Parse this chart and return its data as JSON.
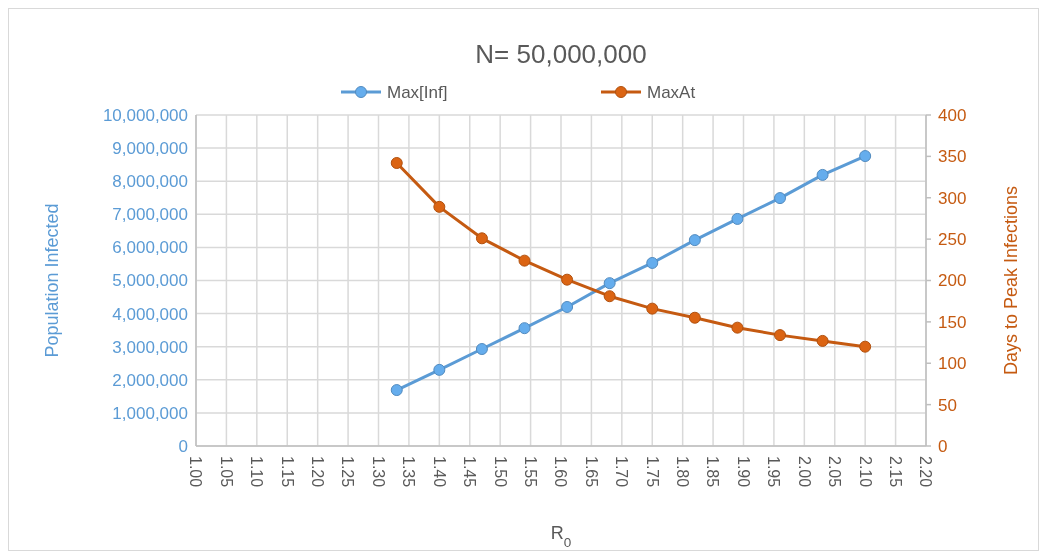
{
  "chart_data": {
    "type": "line",
    "title": "N= 50,000,000",
    "xlabel": "R$_{0}$",
    "ylabel": "Population Infected",
    "y2label": "Days to Peak Infections",
    "x": [
      1.33,
      1.4,
      1.47,
      1.54,
      1.61,
      1.68,
      1.75,
      1.82,
      1.89,
      1.96,
      2.03,
      2.1
    ],
    "series": [
      {
        "name": "Max[Inf]",
        "color": "#5b9bd5",
        "values": [
          1690000,
          2300000,
          2930000,
          3560000,
          4200000,
          4920000,
          5530000,
          6220000,
          6860000,
          7490000,
          8190000,
          8760000
        ]
      },
      {
        "name": "MaxAt",
        "color": "#c55a11",
        "axis": "y2",
        "values": [
          342,
          289,
          251,
          224,
          201,
          181,
          166,
          155,
          143,
          134,
          127,
          120
        ]
      }
    ],
    "xlim": [
      1.0,
      2.2
    ],
    "xticks": [
      {
        "value": 1.0,
        "label": "1.00"
      },
      {
        "value": 1.05,
        "label": "1.05"
      },
      {
        "value": 1.1,
        "label": "1.10"
      },
      {
        "value": 1.15,
        "label": "1.15"
      },
      {
        "value": 1.2,
        "label": "1.20"
      },
      {
        "value": 1.25,
        "label": "1.25"
      },
      {
        "value": 1.3,
        "label": "1.30"
      },
      {
        "value": 1.35,
        "label": "1.35"
      },
      {
        "value": 1.4,
        "label": "1.40"
      },
      {
        "value": 1.45,
        "label": "1.45"
      },
      {
        "value": 1.5,
        "label": "1.50"
      },
      {
        "value": 1.55,
        "label": "1.55"
      },
      {
        "value": 1.6,
        "label": "1.60"
      },
      {
        "value": 1.65,
        "label": "1.65"
      },
      {
        "value": 1.7,
        "label": "1.70"
      },
      {
        "value": 1.75,
        "label": "1.75"
      },
      {
        "value": 1.8,
        "label": "1.80"
      },
      {
        "value": 1.85,
        "label": "1.85"
      },
      {
        "value": 1.9,
        "label": "1.90"
      },
      {
        "value": 1.95,
        "label": "1.95"
      },
      {
        "value": 2.0,
        "label": "2.00"
      },
      {
        "value": 2.05,
        "label": "2.05"
      },
      {
        "value": 2.1,
        "label": "2.10"
      },
      {
        "value": 2.15,
        "label": "2.15"
      },
      {
        "value": 2.2,
        "label": "2.20"
      }
    ],
    "ylim": [
      0,
      10000000
    ],
    "yticks": [
      0,
      {
        "value": 1000000,
        "label": "1,000,000"
      },
      {
        "value": 2000000,
        "label": "2,000,000"
      },
      {
        "value": 3000000,
        "label": "3,000,000"
      },
      {
        "value": 4000000,
        "label": "4,000,000"
      },
      {
        "value": 5000000,
        "label": "5,000,000"
      },
      {
        "value": 6000000,
        "label": "6,000,000"
      },
      {
        "value": 7000000,
        "label": "7,000,000"
      },
      {
        "value": 8000000,
        "label": "8,000,000"
      },
      {
        "value": 9000000,
        "label": "9,000,000"
      },
      {
        "value": 10000000,
        "label": "10,000,000"
      }
    ],
    "y2lim": [
      0,
      400
    ],
    "y2ticks": [
      0,
      50,
      100,
      150,
      200,
      250,
      300,
      350,
      400
    ],
    "grid": true,
    "legend": "top",
    "marker": "circle",
    "line_style": "solid"
  }
}
